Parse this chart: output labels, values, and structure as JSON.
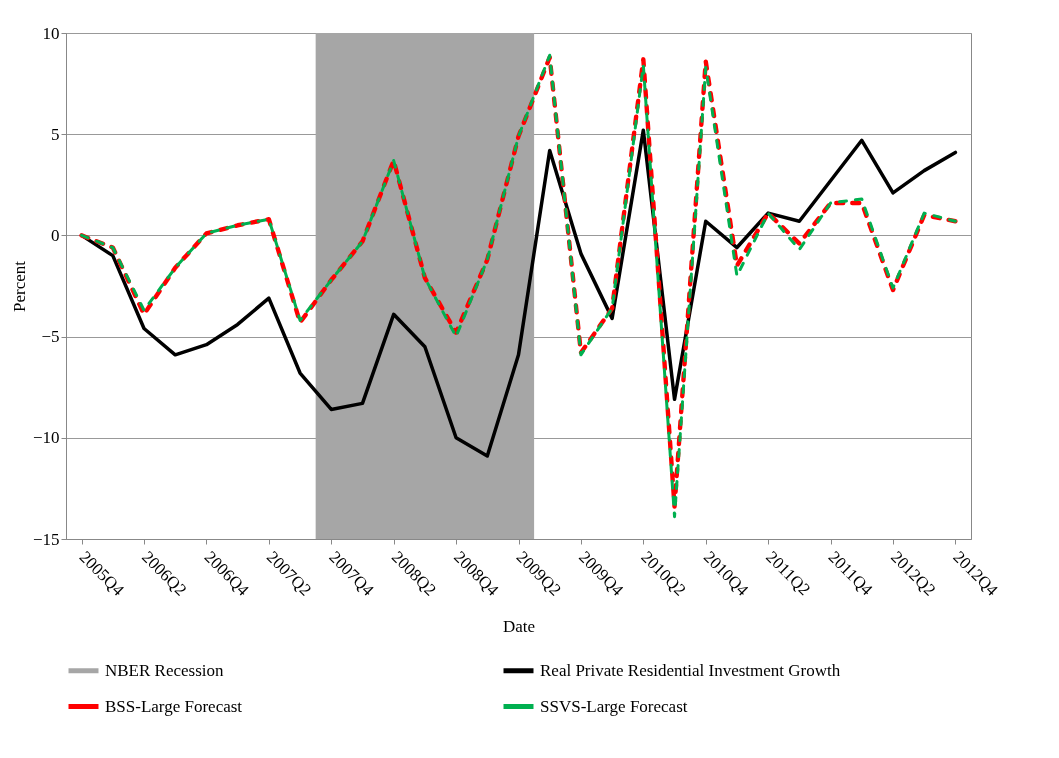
{
  "chart_data": {
    "type": "line",
    "xlabel": "Date",
    "ylabel": "Percent",
    "categories": [
      "2005Q4",
      null,
      "2006Q2",
      null,
      "2006Q4",
      null,
      "2007Q2",
      null,
      "2007Q4",
      null,
      "2008Q2",
      null,
      "2008Q4",
      null,
      "2009Q2",
      null,
      "2009Q4",
      null,
      "2010Q2",
      null,
      "2010Q4",
      null,
      "2011Q2",
      null,
      "2011Q4",
      null,
      "2012Q2",
      null,
      "2012Q4"
    ],
    "series": [
      {
        "name": "Real Private Residential Investment Growth",
        "color": "#000000",
        "line_style": "solid",
        "values": [
          0,
          -1.0,
          -4.6,
          -5.9,
          -5.4,
          -4.4,
          -3.1,
          -6.8,
          -8.6,
          -8.3,
          -3.9,
          -5.5,
          -10.0,
          -10.9,
          -5.9,
          4.2,
          -0.9,
          -4.1,
          5.2,
          -8.1,
          0.7,
          -0.6,
          1.1,
          0.7,
          2.7,
          4.7,
          2.1,
          3.2,
          4.1
        ]
      },
      {
        "name": "BSS-Large Forecast",
        "color": "#ff0000",
        "line_style": "dashed",
        "values": [
          0,
          -0.6,
          -3.9,
          -1.6,
          0.1,
          0.5,
          0.8,
          -4.3,
          -2.2,
          -0.3,
          3.7,
          -2.1,
          -4.8,
          -1.2,
          4.9,
          8.8,
          -5.8,
          -3.6,
          8.7,
          -13.4,
          8.6,
          -1.5,
          1.1,
          -0.4,
          1.6,
          1.6,
          -2.7,
          1.0,
          0.7
        ]
      },
      {
        "name": "SSVS-Large Forecast",
        "color": "#00b050",
        "line_style": "dashed",
        "values": [
          0,
          -0.6,
          -3.7,
          -1.6,
          0.1,
          0.5,
          0.8,
          -4.2,
          -2.2,
          -0.3,
          3.7,
          -2.1,
          -5.0,
          -1.2,
          4.9,
          8.9,
          -5.9,
          -3.6,
          8.4,
          -13.9,
          8.3,
          -2.0,
          1.1,
          -0.7,
          1.6,
          1.8,
          -2.6,
          1.1,
          0.7
        ]
      }
    ],
    "bands": [
      {
        "axis": "x",
        "from": "2007Q4",
        "to": "2009Q2",
        "label": "NBER Recession",
        "color": "#a6a6a6"
      }
    ],
    "ylim": [
      -15,
      10
    ],
    "yticks": [
      -15,
      -10,
      -5,
      0,
      5,
      10
    ],
    "grid": "y",
    "legend": "bottom"
  }
}
